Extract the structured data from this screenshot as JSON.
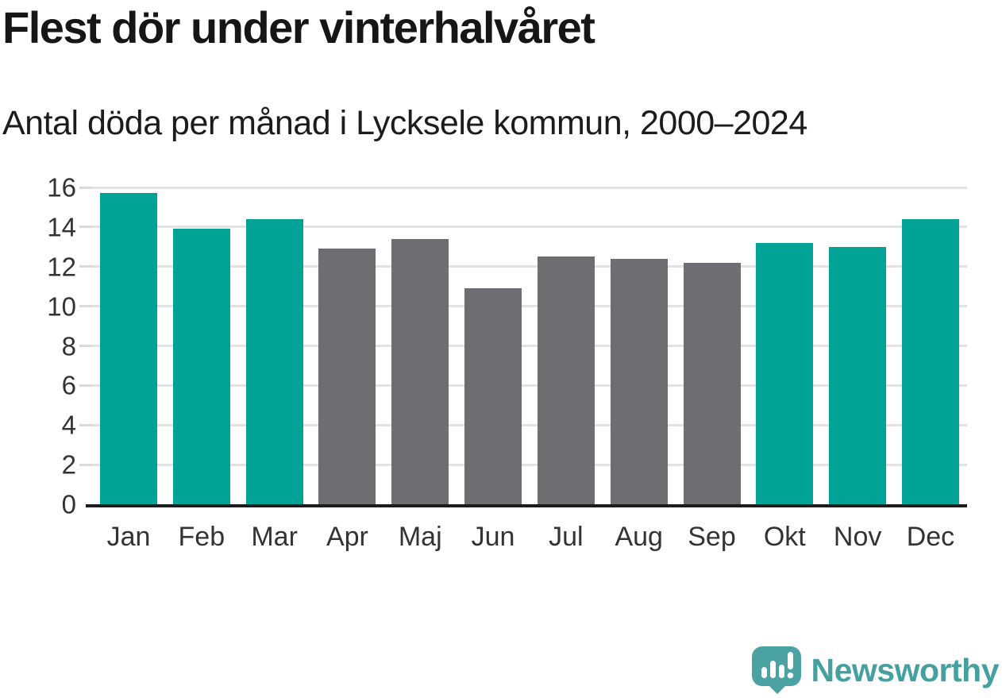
{
  "header": {
    "title": "Flest dör under vinterhalvåret",
    "subtitle": "Antal döda per månad i Lycksele kommun, 2000–2024"
  },
  "chart_data": {
    "type": "bar",
    "title": "Flest dör under vinterhalvåret",
    "subtitle": "Antal döda per månad i Lycksele kommun, 2000–2024",
    "categories": [
      "Jan",
      "Feb",
      "Mar",
      "Apr",
      "Maj",
      "Jun",
      "Jul",
      "Aug",
      "Sep",
      "Okt",
      "Nov",
      "Dec"
    ],
    "values": [
      15.7,
      13.9,
      14.4,
      12.9,
      13.4,
      10.9,
      12.5,
      12.4,
      12.2,
      13.2,
      13.0,
      14.4
    ],
    "bar_colors": [
      "highlight",
      "highlight",
      "highlight",
      "default",
      "default",
      "default",
      "default",
      "default",
      "default",
      "highlight",
      "highlight",
      "highlight"
    ],
    "xlabel": "",
    "ylabel": "",
    "ylim": [
      0,
      16
    ],
    "yticks": [
      0,
      2,
      4,
      6,
      8,
      10,
      12,
      14,
      16
    ],
    "grid": true,
    "legend": "none",
    "colors": {
      "highlight": "#00a396",
      "default": "#6d6d72",
      "gridline": "#e2e2e2",
      "axis": "#1d1d1d",
      "tick_label": "#333333"
    }
  },
  "footer": {
    "brand": "Newsworthy",
    "brand_color": "#45a1a0",
    "icon_color": "#4aa3a2"
  }
}
